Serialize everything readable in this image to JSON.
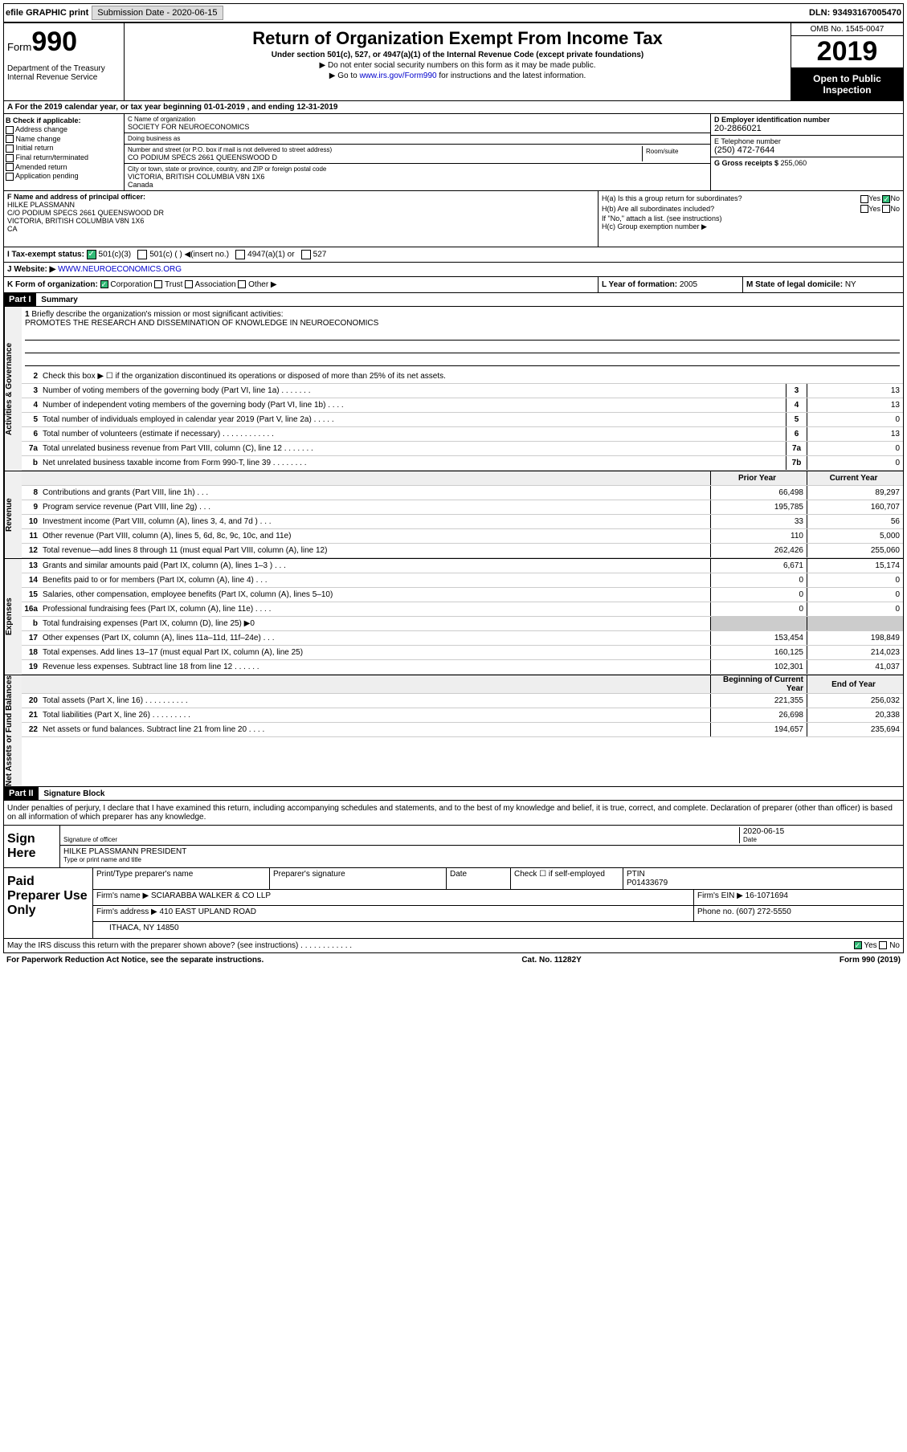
{
  "topbar": {
    "efile": "efile GRAPHIC print",
    "subdate_label": "Submission Date - ",
    "subdate": "2020-06-15",
    "dln_label": "DLN: ",
    "dln": "93493167005470"
  },
  "header": {
    "form_label": "Form",
    "form_num": "990",
    "dept": "Department of the Treasury\nInternal Revenue Service",
    "title": "Return of Organization Exempt From Income Tax",
    "sub1": "Under section 501(c), 527, or 4947(a)(1) of the Internal Revenue Code (except private foundations)",
    "sub2": "▶ Do not enter social security numbers on this form as it may be made public.",
    "sub3_pre": "▶ Go to ",
    "sub3_link": "www.irs.gov/Form990",
    "sub3_post": " for instructions and the latest information.",
    "omb": "OMB No. 1545-0047",
    "year": "2019",
    "inspect": "Open to Public Inspection"
  },
  "rowA": "A For the 2019 calendar year, or tax year beginning 01-01-2019   , and ending 12-31-2019",
  "colB": {
    "title": "B Check if applicable:",
    "opts": [
      "Address change",
      "Name change",
      "Initial return",
      "Final return/terminated",
      "Amended return",
      "Application pending"
    ]
  },
  "colC": {
    "name_lbl": "C Name of organization",
    "name": "SOCIETY FOR NEUROECONOMICS",
    "dba_lbl": "Doing business as",
    "dba": "",
    "addr_lbl": "Number and street (or P.O. box if mail is not delivered to street address)",
    "addr": "CO PODIUM SPECS 2661 QUEENSWOOD D",
    "room_lbl": "Room/suite",
    "city_lbl": "City or town, state or province, country, and ZIP or foreign postal code",
    "city": "VICTORIA, BRITISH COLUMBIA   V8N 1X6\nCanada"
  },
  "colD": {
    "ein_lbl": "D Employer identification number",
    "ein": "20-2866021",
    "phone_lbl": "E Telephone number",
    "phone": "(250) 472-7644",
    "gross_lbl": "G Gross receipts $ ",
    "gross": "255,060"
  },
  "colF": {
    "lbl": "F  Name and address of principal officer:",
    "name": "HILKE PLASSMANN",
    "addr": "C/O PODIUM SPECS 2661 QUEENSWOOD DR\nVICTORIA, BRITISH COLUMBIA   V8N 1X6\nCA"
  },
  "colH": {
    "a": "H(a)  Is this a group return for subordinates?",
    "a_ans": "No",
    "b": "H(b)  Are all subordinates included?",
    "b_note": "If \"No,\" attach a list. (see instructions)",
    "c": "H(c)  Group exemption number ▶"
  },
  "rowI": {
    "lbl": "I   Tax-exempt status:",
    "o1": "501(c)(3)",
    "o2": "501(c) (  ) ◀(insert no.)",
    "o3": "4947(a)(1) or",
    "o4": "527"
  },
  "rowJ": {
    "lbl": "J   Website: ▶",
    "val": "WWW.NEUROECONOMICS.ORG"
  },
  "rowK": {
    "lbl": "K Form of organization:",
    "o1": "Corporation",
    "o2": "Trust",
    "o3": "Association",
    "o4": "Other ▶"
  },
  "rowL": {
    "lbl": "L Year of formation: ",
    "val": "2005"
  },
  "rowM": {
    "lbl": "M State of legal domicile: ",
    "val": "NY"
  },
  "part1": {
    "hdr": "Part I",
    "title": "Summary",
    "l1": "Briefly describe the organization's mission or most significant activities:",
    "l1v": "PROMOTES THE RESEARCH AND DISSEMINATION OF KNOWLEDGE IN NEUROECONOMICS",
    "l2": "Check this box ▶ ☐  if the organization discontinued its operations or disposed of more than 25% of its net assets.",
    "vtab1": "Activities & Governance",
    "vtab2": "Revenue",
    "vtab3": "Expenses",
    "vtab4": "Net Assets or Fund Balances",
    "col_prior": "Prior Year",
    "col_current": "Current Year",
    "col_begin": "Beginning of Current Year",
    "col_end": "End of Year",
    "lines_gov": [
      {
        "n": "3",
        "d": "Number of voting members of the governing body (Part VI, line 1a)  .   .   .   .   .   .   .",
        "b": "3",
        "v": "13"
      },
      {
        "n": "4",
        "d": "Number of independent voting members of the governing body (Part VI, line 1b)  .   .   .   .",
        "b": "4",
        "v": "13"
      },
      {
        "n": "5",
        "d": "Total number of individuals employed in calendar year 2019 (Part V, line 2a)  .   .   .   .   .",
        "b": "5",
        "v": "0"
      },
      {
        "n": "6",
        "d": "Total number of volunteers (estimate if necessary)   .   .   .   .   .   .   .   .   .   .   .   .",
        "b": "6",
        "v": "13"
      },
      {
        "n": "7a",
        "d": "Total unrelated business revenue from Part VIII, column (C), line 12  .   .   .   .   .   .   .",
        "b": "7a",
        "v": "0"
      },
      {
        "n": "b",
        "d": "Net unrelated business taxable income from Form 990-T, line 39   .   .   .   .   .   .   .   .",
        "b": "7b",
        "v": "0"
      }
    ],
    "lines_rev": [
      {
        "n": "8",
        "d": "Contributions and grants (Part VIII, line 1h)  .   .   .",
        "p": "66,498",
        "c": "89,297"
      },
      {
        "n": "9",
        "d": "Program service revenue (Part VIII, line 2g)   .   .   .",
        "p": "195,785",
        "c": "160,707"
      },
      {
        "n": "10",
        "d": "Investment income (Part VIII, column (A), lines 3, 4, and 7d )   .   .   .",
        "p": "33",
        "c": "56"
      },
      {
        "n": "11",
        "d": "Other revenue (Part VIII, column (A), lines 5, 6d, 8c, 9c, 10c, and 11e)",
        "p": "110",
        "c": "5,000"
      },
      {
        "n": "12",
        "d": "Total revenue—add lines 8 through 11 (must equal Part VIII, column (A), line 12)",
        "p": "262,426",
        "c": "255,060"
      }
    ],
    "lines_exp": [
      {
        "n": "13",
        "d": "Grants and similar amounts paid (Part IX, column (A), lines 1–3 )  .   .   .",
        "p": "6,671",
        "c": "15,174"
      },
      {
        "n": "14",
        "d": "Benefits paid to or for members (Part IX, column (A), line 4)   .   .   .",
        "p": "0",
        "c": "0"
      },
      {
        "n": "15",
        "d": "Salaries, other compensation, employee benefits (Part IX, column (A), lines 5–10)",
        "p": "0",
        "c": "0"
      },
      {
        "n": "16a",
        "d": "Professional fundraising fees (Part IX, column (A), line 11e)  .   .   .   .",
        "p": "0",
        "c": "0"
      },
      {
        "n": "b",
        "d": "Total fundraising expenses (Part IX, column (D), line 25) ▶0",
        "p": "",
        "c": "",
        "shaded": true
      },
      {
        "n": "17",
        "d": "Other expenses (Part IX, column (A), lines 11a–11d, 11f–24e)   .   .   .",
        "p": "153,454",
        "c": "198,849"
      },
      {
        "n": "18",
        "d": "Total expenses. Add lines 13–17 (must equal Part IX, column (A), line 25)",
        "p": "160,125",
        "c": "214,023"
      },
      {
        "n": "19",
        "d": "Revenue less expenses. Subtract line 18 from line 12  .   .   .   .   .   .",
        "p": "102,301",
        "c": "41,037"
      }
    ],
    "lines_net": [
      {
        "n": "20",
        "d": "Total assets (Part X, line 16)  .   .   .   .   .   .   .   .   .   .",
        "p": "221,355",
        "c": "256,032"
      },
      {
        "n": "21",
        "d": "Total liabilities (Part X, line 26)  .   .   .   .   .   .   .   .   .",
        "p": "26,698",
        "c": "20,338"
      },
      {
        "n": "22",
        "d": "Net assets or fund balances. Subtract line 21 from line 20   .   .   .   .",
        "p": "194,657",
        "c": "235,694"
      }
    ]
  },
  "part2": {
    "hdr": "Part II",
    "title": "Signature Block",
    "decl": "Under penalties of perjury, I declare that I have examined this return, including accompanying schedules and statements, and to the best of my knowledge and belief, it is true, correct, and complete. Declaration of preparer (other than officer) is based on all information of which preparer has any knowledge.",
    "sign_here": "Sign Here",
    "sig_officer": "Signature of officer",
    "sig_date": "2020-06-15",
    "date_lbl": "Date",
    "officer_name": "HILKE PLASSMANN  PRESIDENT",
    "type_lbl": "Type or print name and title",
    "paid": "Paid Preparer Use Only",
    "prep_name_lbl": "Print/Type preparer's name",
    "prep_sig_lbl": "Preparer's signature",
    "prep_date_lbl": "Date",
    "check_self": "Check ☐ if self-employed",
    "ptin_lbl": "PTIN",
    "ptin": "P01433679",
    "firm_name_lbl": "Firm's name    ▶ ",
    "firm_name": "SCIARABBA WALKER & CO LLP",
    "firm_ein_lbl": "Firm's EIN ▶ ",
    "firm_ein": "16-1071694",
    "firm_addr_lbl": "Firm's address ▶ ",
    "firm_addr": "410 EAST UPLAND ROAD",
    "firm_city": "ITHACA, NY   14850",
    "firm_phone_lbl": "Phone no. ",
    "firm_phone": "(607) 272-5550",
    "discuss": "May the IRS discuss this return with the preparer shown above? (see instructions)   .   .   .   .   .   .   .   .   .   .   .   .",
    "discuss_yes": "Yes",
    "discuss_no": "No"
  },
  "footer": {
    "left": "For Paperwork Reduction Act Notice, see the separate instructions.",
    "mid": "Cat. No. 11282Y",
    "right": "Form 990 (2019)"
  }
}
